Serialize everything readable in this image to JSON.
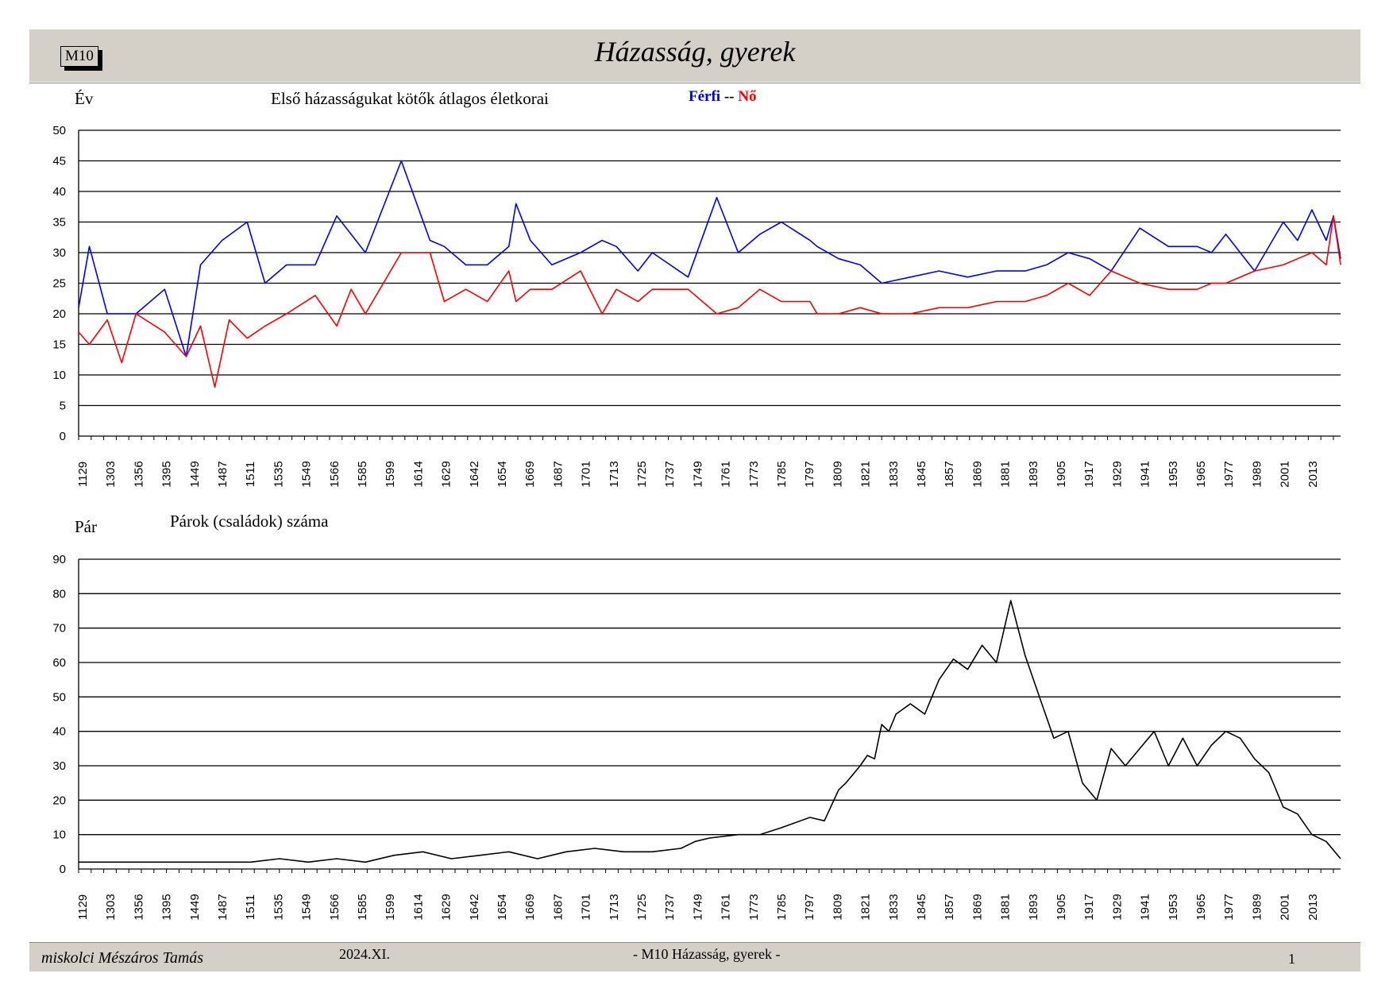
{
  "header": {
    "code": "M10",
    "title": "Házasság, gyerek"
  },
  "chart_data": [
    {
      "type": "line",
      "title": "Első házasságukat kötők átlagos életkorai",
      "ylabel": "Év",
      "ylim": [
        0,
        50
      ],
      "yticks": [
        0,
        5,
        10,
        15,
        20,
        25,
        30,
        35,
        40,
        45,
        50
      ],
      "grid": true,
      "legend": [
        {
          "label": "Férfi",
          "color": "#0000ff"
        },
        {
          "label": "--",
          "color": "#000000"
        },
        {
          "label": "Nő",
          "color": "#ff0000"
        }
      ],
      "x_tick_labels": [
        "1129",
        "1303",
        "1356",
        "1395",
        "1449",
        "1487",
        "1511",
        "1535",
        "1549",
        "1566",
        "1585",
        "1599",
        "1614",
        "1629",
        "1642",
        "1654",
        "1669",
        "1687",
        "1701",
        "1713",
        "1725",
        "1737",
        "1749",
        "1761",
        "1773",
        "1785",
        "1797",
        "1809",
        "1821",
        "1833",
        "1845",
        "1857",
        "1869",
        "1881",
        "1893",
        "1905",
        "1917",
        "1929",
        "1941",
        "1953",
        "1965",
        "1977",
        "1989",
        "2001",
        "2013"
      ],
      "x_index_range": [
        0,
        352
      ],
      "series": [
        {
          "name": "Férfi",
          "color": "#0000ff",
          "x": [
            0,
            3,
            8,
            16,
            24,
            30,
            34,
            40,
            47,
            52,
            58,
            66,
            72,
            76,
            80,
            90,
            98,
            102,
            108,
            114,
            120,
            122,
            126,
            132,
            140,
            146,
            150,
            156,
            160,
            170,
            178,
            184,
            190,
            196,
            204,
            206,
            212,
            218,
            224,
            232,
            240,
            248,
            256,
            264,
            270,
            276,
            282,
            288,
            296,
            304,
            312,
            316,
            320,
            328,
            336,
            340,
            344,
            348,
            350,
            352
          ],
          "values": [
            21,
            31,
            20,
            20,
            24,
            13,
            28,
            32,
            35,
            25,
            28,
            28,
            36,
            33,
            30,
            45,
            32,
            31,
            28,
            28,
            31,
            38,
            32,
            28,
            30,
            32,
            31,
            27,
            30,
            26,
            39,
            30,
            33,
            35,
            32,
            31,
            29,
            28,
            25,
            26,
            27,
            26,
            27,
            27,
            28,
            30,
            29,
            27,
            34,
            31,
            31,
            30,
            33,
            27,
            35,
            32,
            37,
            32,
            36,
            29
          ]
        },
        {
          "name": "Nő",
          "color": "#ff0000",
          "x": [
            0,
            3,
            8,
            12,
            16,
            24,
            30,
            34,
            38,
            42,
            47,
            52,
            58,
            66,
            72,
            76,
            80,
            90,
            98,
            102,
            108,
            114,
            120,
            122,
            126,
            132,
            140,
            146,
            150,
            156,
            160,
            170,
            178,
            184,
            190,
            196,
            204,
            206,
            212,
            218,
            224,
            232,
            240,
            248,
            256,
            264,
            270,
            276,
            282,
            288,
            296,
            304,
            312,
            316,
            320,
            328,
            336,
            340,
            344,
            348,
            350,
            352
          ],
          "values": [
            17,
            15,
            19,
            12,
            20,
            17,
            13,
            18,
            8,
            19,
            16,
            18,
            20,
            23,
            18,
            24,
            20,
            30,
            30,
            22,
            24,
            22,
            27,
            22,
            24,
            24,
            27,
            20,
            24,
            22,
            24,
            24,
            20,
            21,
            24,
            22,
            22,
            20,
            20,
            21,
            20,
            20,
            21,
            21,
            22,
            22,
            23,
            25,
            23,
            27,
            25,
            24,
            24,
            25,
            25,
            27,
            28,
            29,
            30,
            28,
            36,
            28
          ]
        }
      ]
    },
    {
      "type": "line",
      "title": "Párok (családok) száma",
      "ylabel": "Pár",
      "ylim": [
        0,
        90
      ],
      "yticks": [
        0,
        10,
        20,
        30,
        40,
        50,
        60,
        70,
        80,
        90
      ],
      "grid": true,
      "x_tick_labels": [
        "1129",
        "1303",
        "1356",
        "1395",
        "1449",
        "1487",
        "1511",
        "1535",
        "1549",
        "1566",
        "1585",
        "1599",
        "1614",
        "1629",
        "1642",
        "1654",
        "1669",
        "1687",
        "1701",
        "1713",
        "1725",
        "1737",
        "1749",
        "1761",
        "1773",
        "1785",
        "1797",
        "1809",
        "1821",
        "1833",
        "1845",
        "1857",
        "1869",
        "1881",
        "1893",
        "1905",
        "1917",
        "1929",
        "1941",
        "1953",
        "1965",
        "1977",
        "1989",
        "2001",
        "2013"
      ],
      "x_index_range": [
        0,
        352
      ],
      "series": [
        {
          "name": "",
          "color": "#000000",
          "x": [
            0,
            8,
            16,
            24,
            32,
            40,
            48,
            56,
            64,
            72,
            80,
            88,
            96,
            104,
            112,
            120,
            128,
            136,
            144,
            152,
            160,
            168,
            172,
            176,
            184,
            190,
            196,
            204,
            208,
            212,
            214,
            218,
            220,
            222,
            224,
            226,
            228,
            232,
            236,
            240,
            244,
            248,
            252,
            256,
            260,
            264,
            268,
            272,
            276,
            280,
            284,
            288,
            292,
            296,
            300,
            304,
            308,
            312,
            316,
            320,
            324,
            328,
            332,
            336,
            340,
            344,
            348,
            352
          ],
          "values": [
            2,
            2,
            2,
            2,
            2,
            2,
            2,
            3,
            2,
            3,
            2,
            4,
            5,
            3,
            4,
            5,
            3,
            5,
            6,
            5,
            5,
            6,
            8,
            9,
            10,
            10,
            12,
            15,
            14,
            23,
            25,
            30,
            33,
            32,
            42,
            40,
            45,
            48,
            45,
            55,
            61,
            58,
            65,
            60,
            78,
            62,
            50,
            38,
            40,
            25,
            20,
            35,
            30,
            35,
            40,
            30,
            38,
            30,
            36,
            40,
            38,
            32,
            28,
            18,
            16,
            10,
            8,
            3
          ]
        }
      ]
    }
  ],
  "footer": {
    "author": "miskolci Mészáros Tamás",
    "date": "2024.XI.",
    "title": "- M10  Házasság, gyerek -",
    "page": "1"
  }
}
